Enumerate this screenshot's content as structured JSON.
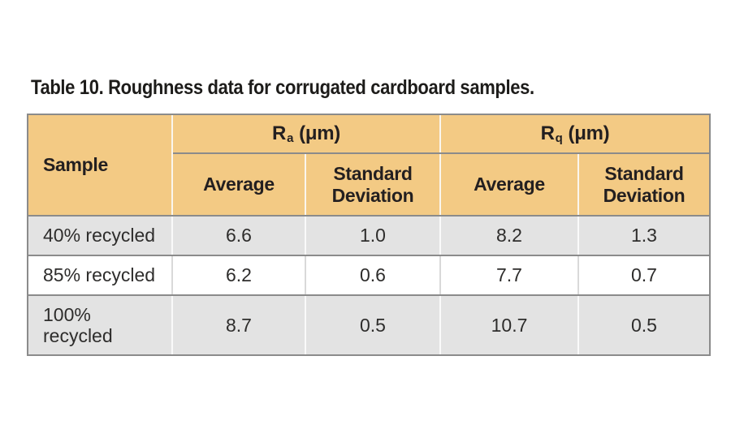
{
  "title": "Table 10. Roughness data for corrugated cardboard samples.",
  "colors": {
    "header_bg": "#f3ca84",
    "alt_row_bg": "#e3e3e3",
    "white_row_bg": "#ffffff",
    "grid_line": "#8b8b8b",
    "light_divider": "#d9d9d9",
    "header_text": "#231f20",
    "body_text": "#2e2d2c"
  },
  "table": {
    "corner_header": "Sample",
    "groups": [
      {
        "symbol": "R",
        "subscript": "a",
        "unit": "(μm)",
        "columns": [
          "Average",
          "Standard Deviation"
        ]
      },
      {
        "symbol": "R",
        "subscript": "q",
        "unit": "(μm)",
        "columns": [
          "Average",
          "Standard Deviation"
        ]
      }
    ],
    "rows": [
      {
        "sample": "40% recycled",
        "values": [
          "6.6",
          "1.0",
          "8.2",
          "1.3"
        ]
      },
      {
        "sample": "85% recycled",
        "values": [
          "6.2",
          "0.6",
          "7.7",
          "0.7"
        ]
      },
      {
        "sample": "100%\nrecycled",
        "values": [
          "8.7",
          "0.5",
          "10.7",
          "0.5"
        ]
      }
    ]
  },
  "chart_data": {
    "type": "table",
    "title": "Table 10. Roughness data for corrugated cardboard samples.",
    "column_groups": [
      "Sample",
      "Ra (μm)",
      "Rq (μm)"
    ],
    "columns": [
      "Sample",
      "Ra Average",
      "Ra Standard Deviation",
      "Rq Average",
      "Rq Standard Deviation"
    ],
    "rows": [
      [
        "40% recycled",
        6.6,
        1.0,
        8.2,
        1.3
      ],
      [
        "85% recycled",
        6.2,
        0.6,
        7.7,
        0.7
      ],
      [
        "100% recycled",
        8.7,
        0.5,
        10.7,
        0.5
      ]
    ]
  }
}
